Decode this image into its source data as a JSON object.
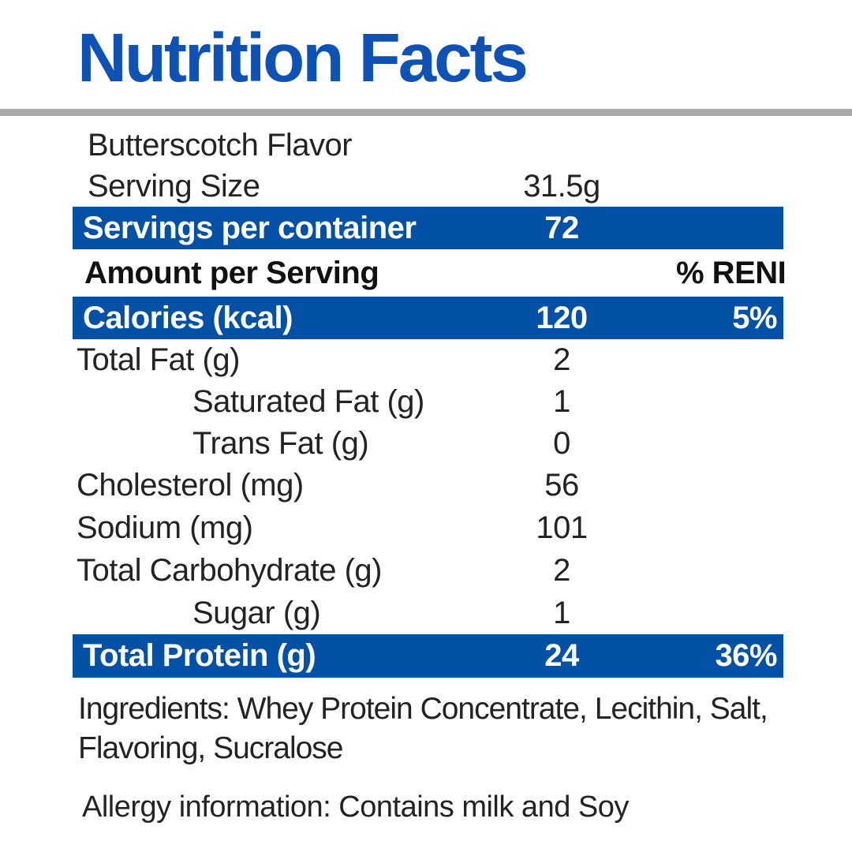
{
  "title": "Nutrition Facts",
  "colors": {
    "title-blue": "#0E52B6",
    "bar-blue": "#0351A7",
    "divider-gray": "#A9A9A9",
    "text-dark": "#232323",
    "text-black": "#111111"
  },
  "rows": [
    {
      "label": "Butterscotch Flavor"
    },
    {
      "label": "Serving Size",
      "value": "31.5g"
    },
    {
      "label": "Servings per container",
      "value": "72"
    },
    {
      "label": "Amount per Serving",
      "percent": "% RENI"
    },
    {
      "label": "Calories (kcal)",
      "value": "120",
      "percent": "5%"
    },
    {
      "label": "Total Fat (g)",
      "value": "2"
    },
    {
      "label": "Saturated Fat (g)",
      "value": "1"
    },
    {
      "label": "Trans Fat (g)",
      "value": "0"
    },
    {
      "label": "Cholesterol (mg)",
      "value": "56"
    },
    {
      "label": "Sodium (mg)",
      "value": "101"
    },
    {
      "label": "Total Carbohydrate (g)",
      "value": "2"
    },
    {
      "label": "Sugar (g)",
      "value": "1"
    },
    {
      "label": "Total Protein (g)",
      "value": "24",
      "percent": "36%"
    }
  ],
  "ingredients": {
    "line1": "Ingredients: Whey Protein Concentrate, Lecithin, Salt,",
    "line2": "Flavoring, Sucralose"
  },
  "allergy": "Allergy information: Contains milk and Soy"
}
